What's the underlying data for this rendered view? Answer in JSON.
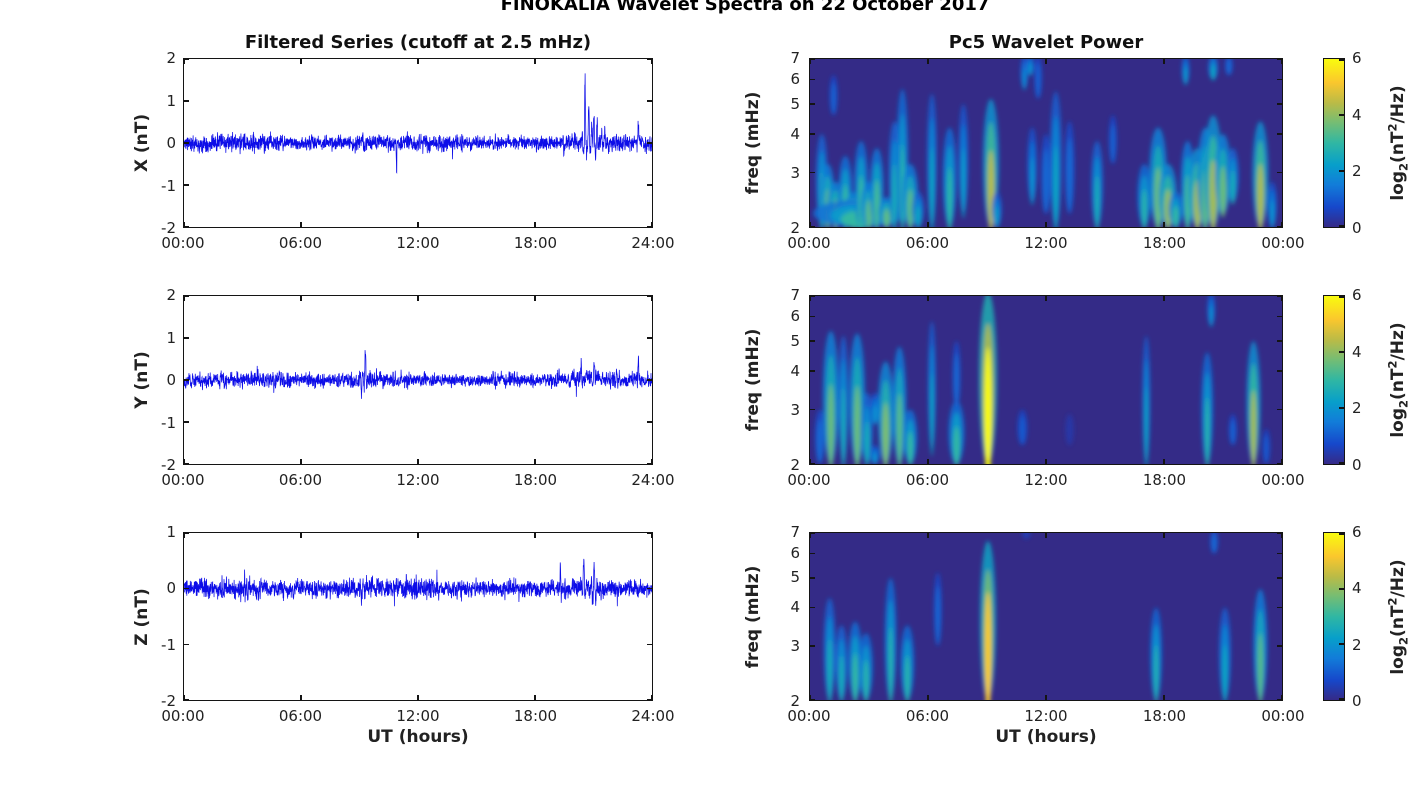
{
  "suptitle": "FINOKALIA Wavelet Spectra on 22 October 2017",
  "colors": {
    "line": "#0d0de8",
    "spec_bg": "#342b87",
    "axis": "#141414",
    "text": "#222222"
  },
  "colorbar_label": {
    "pre": "log",
    "sub": "2",
    "mid": "(nT",
    "sup": "2",
    "post": "/Hz)"
  },
  "chart_data": [
    {
      "id": "ts-x",
      "type": "line",
      "column": "left",
      "row": 0,
      "title": "Filtered Series (cutoff at 2.5 mHz)",
      "ylabel": "X (nT)",
      "xlabel": "UT (hours)",
      "xlim": [
        0,
        24
      ],
      "ylim": [
        -2,
        2
      ],
      "xticks": [
        0,
        6,
        12,
        18,
        24
      ],
      "xtick_labels": [
        "00:00",
        "06:00",
        "12:00",
        "18:00",
        "24:00"
      ],
      "yticks": [
        -2,
        -1,
        0,
        1,
        2
      ],
      "seed": 11,
      "noise_envelope": [
        [
          0,
          0.28
        ],
        [
          2,
          0.31
        ],
        [
          4,
          0.3
        ],
        [
          5,
          0.26
        ],
        [
          8,
          0.23
        ],
        [
          9,
          0.26
        ],
        [
          11,
          0.27
        ],
        [
          12,
          0.3
        ],
        [
          13,
          0.28
        ],
        [
          14,
          0.25
        ],
        [
          16,
          0.22
        ],
        [
          17,
          0.25
        ],
        [
          18,
          0.24
        ],
        [
          19,
          0.26
        ],
        [
          20,
          0.28
        ],
        [
          21,
          0.3
        ],
        [
          22,
          0.3
        ],
        [
          23,
          0.28
        ],
        [
          24,
          0.28
        ]
      ],
      "spikes": [
        [
          9.2,
          0.62,
          0.03
        ],
        [
          10.9,
          -0.78,
          0.02
        ],
        [
          19.5,
          0.75,
          0.04
        ],
        [
          20.55,
          1.6,
          0.1
        ],
        [
          20.8,
          1.05,
          0.12
        ],
        [
          21.1,
          0.8,
          0.15
        ],
        [
          21.5,
          0.5,
          0.12
        ],
        [
          23.3,
          0.55,
          0.03
        ]
      ]
    },
    {
      "id": "ts-y",
      "type": "line",
      "column": "left",
      "row": 1,
      "title": "Filtered Series (cutoff at 2.5 mHz)",
      "ylabel": "Y (nT)",
      "xlabel": "UT (hours)",
      "xlim": [
        0,
        24
      ],
      "ylim": [
        -2,
        2
      ],
      "xticks": [
        0,
        6,
        12,
        18,
        24
      ],
      "xtick_labels": [
        "00:00",
        "06:00",
        "12:00",
        "18:00",
        "24:00"
      ],
      "yticks": [
        -2,
        -1,
        0,
        1,
        2
      ],
      "seed": 22,
      "noise_envelope": [
        [
          0,
          0.25
        ],
        [
          3,
          0.25
        ],
        [
          6,
          0.24
        ],
        [
          8,
          0.22
        ],
        [
          8.8,
          0.28
        ],
        [
          9.6,
          0.32
        ],
        [
          10.5,
          0.28
        ],
        [
          11.5,
          0.26
        ],
        [
          13,
          0.22
        ],
        [
          14.5,
          0.18
        ],
        [
          16,
          0.22
        ],
        [
          18,
          0.24
        ],
        [
          20,
          0.26
        ],
        [
          21,
          0.28
        ],
        [
          22.5,
          0.25
        ],
        [
          24,
          0.22
        ]
      ],
      "spikes": [
        [
          1.15,
          0.52,
          0.03
        ],
        [
          9.1,
          1.15,
          0.05
        ],
        [
          9.3,
          0.6,
          0.12
        ],
        [
          10.8,
          -1.1,
          0.015
        ],
        [
          20.4,
          0.72,
          0.04
        ],
        [
          21.0,
          0.6,
          0.1
        ],
        [
          23.3,
          0.58,
          0.03
        ]
      ]
    },
    {
      "id": "ts-z",
      "type": "line",
      "column": "left",
      "row": 2,
      "title": "Filtered Series (cutoff at 2.5 mHz)",
      "ylabel": "Z (nT)",
      "xlabel": "UT (hours)",
      "xlim": [
        0,
        24
      ],
      "ylim": [
        -2,
        1
      ],
      "xticks": [
        0,
        6,
        12,
        18,
        24
      ],
      "xtick_labels": [
        "00:00",
        "06:00",
        "12:00",
        "18:00",
        "24:00"
      ],
      "yticks": [
        -2,
        -1,
        0,
        1
      ],
      "seed": 33,
      "noise_envelope": [
        [
          0,
          0.22
        ],
        [
          2,
          0.28
        ],
        [
          3.5,
          0.27
        ],
        [
          6,
          0.22
        ],
        [
          8,
          0.22
        ],
        [
          9,
          0.27
        ],
        [
          10,
          0.26
        ],
        [
          11.5,
          0.28
        ],
        [
          12.5,
          0.27
        ],
        [
          14,
          0.22
        ],
        [
          15.5,
          0.2
        ],
        [
          17,
          0.22
        ],
        [
          19,
          0.22
        ],
        [
          20.3,
          0.28
        ],
        [
          21.3,
          0.26
        ],
        [
          23,
          0.22
        ],
        [
          24,
          0.2
        ]
      ],
      "spikes": [
        [
          9.1,
          0.78,
          0.05
        ],
        [
          10.8,
          -1.05,
          0.015
        ],
        [
          19.3,
          0.45,
          0.02
        ],
        [
          20.5,
          0.7,
          0.09
        ],
        [
          21.0,
          0.5,
          0.12
        ],
        [
          23.4,
          0.45,
          0.02
        ]
      ]
    },
    {
      "id": "wav-x",
      "type": "heatmap",
      "column": "right",
      "row": 0,
      "title": "Pc5 Wavelet Power",
      "ylabel": "freq (mHz)",
      "xlabel": "UT (hours)",
      "yscale": "log",
      "flim": [
        2,
        7
      ],
      "clim": [
        0,
        6
      ],
      "xticks": [
        0,
        6,
        12,
        18,
        24
      ],
      "xtick_labels": [
        "00:00",
        "06:00",
        "12:00",
        "18:00",
        "00:00"
      ],
      "yticks": [
        2,
        3,
        4,
        5,
        6,
        7
      ],
      "colorbar_ticks": [
        0,
        2,
        4,
        6
      ],
      "blobs": [
        [
          0.6,
          2.0,
          4.0,
          2.6,
          6
        ],
        [
          0.9,
          2.0,
          3.2,
          3.4,
          7
        ],
        [
          1.2,
          4.6,
          6.2,
          1.6,
          4
        ],
        [
          1.3,
          2.0,
          2.8,
          3.6,
          8
        ],
        [
          1.8,
          2.0,
          3.4,
          3.0,
          7
        ],
        [
          2.2,
          2.0,
          2.6,
          3.8,
          8
        ],
        [
          2.5,
          2.0,
          2.45,
          3.0,
          46
        ],
        [
          2.6,
          2.0,
          3.8,
          3.0,
          7
        ],
        [
          3.0,
          2.0,
          2.8,
          3.4,
          8
        ],
        [
          3.4,
          2.0,
          3.6,
          3.2,
          7
        ],
        [
          3.9,
          2.0,
          2.5,
          3.5,
          8
        ],
        [
          4.3,
          2.0,
          4.4,
          2.6,
          6
        ],
        [
          4.7,
          2.0,
          5.6,
          2.8,
          6
        ],
        [
          5.1,
          2.0,
          3.2,
          3.4,
          8
        ],
        [
          5.5,
          2.0,
          2.6,
          2.4,
          6
        ],
        [
          6.2,
          2.0,
          5.4,
          2.4,
          5
        ],
        [
          7.1,
          2.0,
          4.2,
          2.9,
          7
        ],
        [
          7.8,
          2.2,
          5.0,
          2.2,
          5
        ],
        [
          9.2,
          2.0,
          5.2,
          4.4,
          8
        ],
        [
          9.5,
          2.0,
          2.6,
          2.2,
          5
        ],
        [
          10.9,
          5.6,
          7.2,
          1.9,
          4
        ],
        [
          11.2,
          6.2,
          7.2,
          2.1,
          4
        ],
        [
          11.6,
          5.2,
          7.2,
          1.6,
          4
        ],
        [
          11.3,
          2.4,
          4.2,
          2.0,
          5
        ],
        [
          12.0,
          2.2,
          4.0,
          1.8,
          5
        ],
        [
          12.5,
          2.0,
          5.5,
          2.4,
          6
        ],
        [
          13.2,
          2.2,
          4.4,
          1.8,
          5
        ],
        [
          14.6,
          2.0,
          3.8,
          2.6,
          6
        ],
        [
          15.4,
          3.2,
          4.6,
          1.6,
          4
        ],
        [
          17.0,
          2.0,
          3.2,
          2.8,
          7
        ],
        [
          17.7,
          2.0,
          4.2,
          3.6,
          9
        ],
        [
          18.2,
          2.0,
          3.2,
          4.0,
          9
        ],
        [
          18.6,
          2.0,
          2.6,
          3.0,
          7
        ],
        [
          19.1,
          5.8,
          7.2,
          2.2,
          4
        ],
        [
          19.2,
          2.0,
          3.8,
          3.2,
          7
        ],
        [
          19.7,
          2.0,
          3.6,
          4.2,
          9
        ],
        [
          20.1,
          2.0,
          4.2,
          3.5,
          8
        ],
        [
          20.5,
          6.0,
          7.2,
          2.4,
          5
        ],
        [
          20.5,
          2.0,
          4.6,
          4.2,
          9
        ],
        [
          21.0,
          2.2,
          4.0,
          3.6,
          8
        ],
        [
          21.3,
          6.2,
          7.2,
          1.8,
          4
        ],
        [
          21.5,
          2.4,
          3.6,
          2.6,
          6
        ],
        [
          22.9,
          2.0,
          4.4,
          4.3,
          8
        ],
        [
          23.5,
          2.0,
          2.8,
          2.0,
          5
        ]
      ]
    },
    {
      "id": "wav-y",
      "type": "heatmap",
      "column": "right",
      "row": 1,
      "title": "Pc5 Wavelet Power",
      "ylabel": "freq (mHz)",
      "xlabel": "UT (hours)",
      "yscale": "log",
      "flim": [
        2,
        7
      ],
      "clim": [
        0,
        6
      ],
      "xticks": [
        0,
        6,
        12,
        18,
        24
      ],
      "xtick_labels": [
        "00:00",
        "06:00",
        "12:00",
        "18:00",
        "00:00"
      ],
      "yticks": [
        2,
        3,
        4,
        5,
        6,
        7
      ],
      "colorbar_ticks": [
        0,
        2,
        4,
        6
      ],
      "blobs": [
        [
          0.5,
          2.0,
          3.0,
          1.8,
          5
        ],
        [
          1.06,
          2.0,
          5.4,
          3.6,
          8
        ],
        [
          1.7,
          2.0,
          5.2,
          2.6,
          5
        ],
        [
          2.4,
          2.0,
          5.3,
          3.6,
          8
        ],
        [
          2.9,
          2.0,
          3.4,
          2.6,
          6
        ],
        [
          3.3,
          2.7,
          3.4,
          2.0,
          5
        ],
        [
          3.3,
          2.0,
          2.3,
          2.0,
          5
        ],
        [
          3.85,
          2.0,
          4.3,
          3.8,
          8
        ],
        [
          4.55,
          2.0,
          4.8,
          3.4,
          7
        ],
        [
          5.1,
          2.0,
          3.0,
          3.0,
          7
        ],
        [
          6.2,
          2.2,
          5.8,
          2.4,
          4
        ],
        [
          7.45,
          2.0,
          3.2,
          3.0,
          8
        ],
        [
          7.45,
          3.0,
          5.0,
          1.8,
          4
        ],
        [
          9.05,
          2.0,
          7.2,
          6.0,
          9
        ],
        [
          10.8,
          2.3,
          3.0,
          1.4,
          5
        ],
        [
          13.2,
          2.3,
          2.9,
          0.9,
          4
        ],
        [
          17.1,
          2.0,
          5.2,
          2.4,
          4
        ],
        [
          20.2,
          2.0,
          4.6,
          2.8,
          6
        ],
        [
          20.4,
          5.6,
          7.2,
          2.0,
          4
        ],
        [
          21.5,
          2.3,
          2.9,
          1.6,
          4
        ],
        [
          22.55,
          2.0,
          5.0,
          4.2,
          7
        ],
        [
          23.2,
          2.0,
          2.6,
          1.4,
          4
        ]
      ]
    },
    {
      "id": "wav-z",
      "type": "heatmap",
      "column": "right",
      "row": 2,
      "title": "Pc5 Wavelet Power",
      "ylabel": "freq (mHz)",
      "xlabel": "UT (hours)",
      "yscale": "log",
      "flim": [
        2,
        7
      ],
      "clim": [
        0,
        6
      ],
      "xticks": [
        0,
        6,
        12,
        18,
        24
      ],
      "xtick_labels": [
        "00:00",
        "06:00",
        "12:00",
        "18:00",
        "00:00"
      ],
      "yticks": [
        2,
        3,
        4,
        5,
        6,
        7
      ],
      "colorbar_ticks": [
        0,
        2,
        4,
        6
      ],
      "blobs": [
        [
          1.0,
          2.0,
          4.3,
          2.6,
          6
        ],
        [
          1.6,
          2.0,
          3.5,
          2.6,
          6
        ],
        [
          2.3,
          2.0,
          3.6,
          3.0,
          7
        ],
        [
          2.85,
          2.0,
          3.3,
          2.8,
          7
        ],
        [
          4.1,
          2.0,
          5.0,
          2.8,
          6
        ],
        [
          4.95,
          2.0,
          3.5,
          2.8,
          7
        ],
        [
          6.5,
          3.0,
          5.2,
          1.7,
          4
        ],
        [
          9.05,
          2.0,
          6.6,
          5.2,
          8
        ],
        [
          11.0,
          6.7,
          7.2,
          1.2,
          4
        ],
        [
          17.6,
          2.0,
          4.0,
          2.7,
          6
        ],
        [
          20.55,
          6.0,
          7.2,
          1.8,
          4
        ],
        [
          21.1,
          2.0,
          4.0,
          2.4,
          6
        ],
        [
          22.9,
          2.0,
          4.6,
          3.4,
          7
        ]
      ]
    }
  ]
}
